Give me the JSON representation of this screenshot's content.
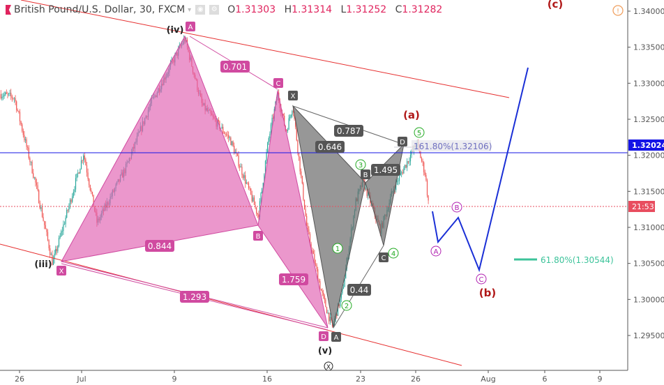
{
  "header": {
    "symbol": "British Pound/U.S. Dollar, 30, FXCM",
    "open_label": "O",
    "open": "1.31303",
    "high_label": "H",
    "high": "1.31314",
    "low_label": "L",
    "low": "1.31252",
    "close_label": "C",
    "close": "1.31282"
  },
  "colors": {
    "up": "#26a69a",
    "down": "#ef5350",
    "harmonic_pink": "#e05fb0",
    "harmonic_grey": "#6b6b6b",
    "channel": "#e62e2e",
    "projection": "#1a2fd6",
    "fib": "#3cc39a",
    "last_price": "#1414e6",
    "countdown": "#e84d5f"
  },
  "chart_data": {
    "type": "candlestick",
    "title": "British Pound/U.S. Dollar, 30, FXCM",
    "ylim": [
      1.2905,
      1.3415
    ],
    "y_ticks": [
      "1.34000",
      "1.33500",
      "1.33000",
      "1.32500",
      "1.32000",
      "1.31500",
      "1.31000",
      "1.30500",
      "1.30000",
      "1.29500"
    ],
    "x_ticks": [
      "26",
      "Jul",
      "9",
      "16",
      "23",
      "26",
      "Aug",
      "6",
      "9"
    ],
    "price_path": [
      [
        "06-24T12",
        1.3285
      ],
      [
        "06-25T14",
        1.328
      ],
      [
        "06-27T06",
        1.3164
      ],
      [
        "06-28T16",
        1.305
      ],
      [
        "06-30T02",
        1.3136
      ],
      [
        "07-01T04",
        1.3203
      ],
      [
        "07-02T08",
        1.3106
      ],
      [
        "07-04T20",
        1.3183
      ],
      [
        "07-06T22",
        1.327
      ],
      [
        "07-09T19",
        1.3362
      ],
      [
        "07-11T02",
        1.327
      ],
      [
        "07-13T05",
        1.3222
      ],
      [
        "07-15T08",
        1.3116
      ],
      [
        "07-16T02",
        1.322
      ],
      [
        "07-16T19",
        1.3285
      ],
      [
        "07-17T10",
        1.3232
      ],
      [
        "07-17T22",
        1.327
      ],
      [
        "07-19T00",
        1.3096
      ],
      [
        "07-20T02",
        1.3009
      ],
      [
        "07-20T21",
        1.2961
      ],
      [
        "07-21T15",
        1.3009
      ],
      [
        "07-22T15",
        1.3135
      ],
      [
        "07-23T03",
        1.3164
      ],
      [
        "07-24T02",
        1.3096
      ],
      [
        "07-24T19",
        1.3154
      ],
      [
        "07-25T09",
        1.3183
      ],
      [
        "07-26T02",
        1.3217
      ],
      [
        "07-26T19",
        1.3174
      ],
      [
        "07-27T02",
        1.3128
      ]
    ],
    "last_price_label": "1.32024",
    "countdown_label": "21:53"
  },
  "annotations": {
    "waves": {
      "iv": "(iv)",
      "iii": "(iii)",
      "v": "(v)",
      "a": "(a)",
      "b": "(b)",
      "c": "(c)"
    },
    "impulse": [
      "1",
      "2",
      "3",
      "4",
      "5"
    ],
    "abc": [
      "A",
      "B",
      "C"
    ],
    "pink_points": {
      "X": "X",
      "A": "A",
      "B": "B",
      "C": "C",
      "D": "D"
    },
    "grey_points": {
      "X": "X",
      "A": "A",
      "B": "B",
      "C": "C",
      "D": "D"
    },
    "pink_ratios": {
      "xab": "0.844",
      "abc": "0.701",
      "xad": "1.293",
      "bcd": "1.759"
    },
    "grey_ratios": {
      "xab": "0.646",
      "xad": "0.787",
      "bcd": "1.495",
      "abc": "0.44"
    },
    "ext_label": "161.80%(1.32106)",
    "fib_label": "61.80%(1.30544)",
    "bottom_marker": "X"
  }
}
